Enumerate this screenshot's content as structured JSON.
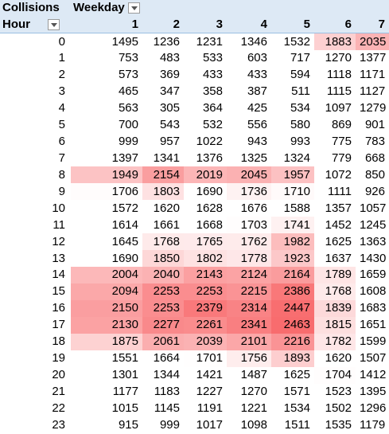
{
  "pivot": {
    "values_field": "Collisions",
    "column_field": "Weekday",
    "row_field": "Hour",
    "columns": [
      "1",
      "2",
      "3",
      "4",
      "5",
      "6",
      "7"
    ],
    "heat_color": "#f8696b",
    "base_color": "#ffffff",
    "scale_min": 1700,
    "scale_max": 2480,
    "rows": [
      {
        "hour": "0",
        "values": [
          1495,
          1236,
          1231,
          1346,
          1532,
          1883,
          2035
        ]
      },
      {
        "hour": "1",
        "values": [
          753,
          483,
          533,
          603,
          717,
          1270,
          1377
        ]
      },
      {
        "hour": "2",
        "values": [
          573,
          369,
          433,
          433,
          594,
          1118,
          1171
        ]
      },
      {
        "hour": "3",
        "values": [
          465,
          347,
          358,
          387,
          511,
          1115,
          1127
        ]
      },
      {
        "hour": "4",
        "values": [
          563,
          305,
          364,
          425,
          534,
          1097,
          1279
        ]
      },
      {
        "hour": "5",
        "values": [
          700,
          543,
          532,
          556,
          580,
          869,
          901
        ]
      },
      {
        "hour": "6",
        "values": [
          999,
          957,
          1022,
          943,
          993,
          775,
          783
        ]
      },
      {
        "hour": "7",
        "values": [
          1397,
          1341,
          1376,
          1325,
          1324,
          779,
          668
        ]
      },
      {
        "hour": "8",
        "values": [
          1949,
          2154,
          2019,
          2045,
          1957,
          1072,
          850
        ]
      },
      {
        "hour": "9",
        "values": [
          1706,
          1803,
          1690,
          1736,
          1710,
          1111,
          926
        ]
      },
      {
        "hour": "10",
        "values": [
          1572,
          1620,
          1628,
          1676,
          1588,
          1357,
          1057
        ]
      },
      {
        "hour": "11",
        "values": [
          1614,
          1661,
          1668,
          1703,
          1741,
          1452,
          1245
        ]
      },
      {
        "hour": "12",
        "values": [
          1645,
          1768,
          1765,
          1762,
          1982,
          1625,
          1363
        ]
      },
      {
        "hour": "13",
        "values": [
          1690,
          1850,
          1802,
          1778,
          1923,
          1637,
          1430
        ]
      },
      {
        "hour": "14",
        "values": [
          2004,
          2040,
          2143,
          2124,
          2164,
          1789,
          1659
        ]
      },
      {
        "hour": "15",
        "values": [
          2094,
          2253,
          2253,
          2215,
          2386,
          1768,
          1608
        ]
      },
      {
        "hour": "16",
        "values": [
          2150,
          2253,
          2379,
          2314,
          2447,
          1839,
          1683
        ]
      },
      {
        "hour": "17",
        "values": [
          2130,
          2277,
          2261,
          2341,
          2463,
          1815,
          1651
        ]
      },
      {
        "hour": "18",
        "values": [
          1875,
          2061,
          2039,
          2101,
          2216,
          1782,
          1599
        ]
      },
      {
        "hour": "19",
        "values": [
          1551,
          1664,
          1701,
          1756,
          1893,
          1620,
          1507
        ]
      },
      {
        "hour": "20",
        "values": [
          1301,
          1344,
          1421,
          1487,
          1625,
          1704,
          1412
        ]
      },
      {
        "hour": "21",
        "values": [
          1177,
          1183,
          1227,
          1270,
          1571,
          1523,
          1395
        ]
      },
      {
        "hour": "22",
        "values": [
          1015,
          1145,
          1191,
          1221,
          1534,
          1502,
          1296
        ]
      },
      {
        "hour": "23",
        "values": [
          915,
          999,
          1017,
          1098,
          1511,
          1535,
          1179
        ]
      }
    ]
  }
}
